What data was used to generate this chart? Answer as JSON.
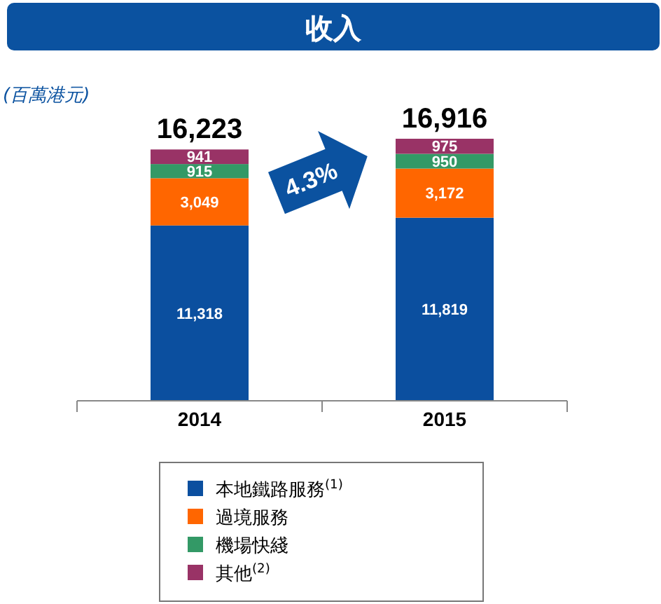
{
  "chart_data": {
    "type": "bar",
    "title": "收入",
    "ylabel": "(百萬港元)",
    "categories": [
      "2014",
      "2015"
    ],
    "stacked": true,
    "legend": "bottom",
    "totals": [
      "16,223",
      "16,916"
    ],
    "annotations": [
      "4.3%"
    ],
    "series": [
      {
        "name": "本地鐵路服務$^{(1)}$",
        "color": "#0b4f9f",
        "values": [
          11318,
          11819
        ],
        "value_labels": [
          "11,318",
          "11,819"
        ]
      },
      {
        "name": "過境服務",
        "color": "#ff6600",
        "values": [
          3049,
          3172
        ],
        "value_labels": [
          "3,049",
          "3,172"
        ]
      },
      {
        "name": "機場快綫",
        "color": "#339966",
        "values": [
          915,
          950
        ],
        "value_labels": [
          "915",
          "950"
        ]
      },
      {
        "name": "其他$^{(2)}$",
        "color": "#993366",
        "values": [
          941,
          975
        ],
        "value_labels": [
          "941",
          "975"
        ]
      }
    ]
  }
}
